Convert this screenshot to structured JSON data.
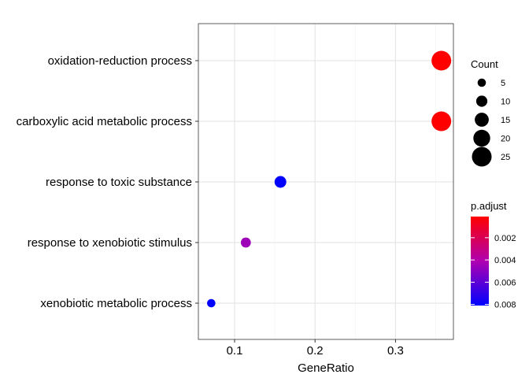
{
  "chart_data": {
    "type": "scatter",
    "title": "",
    "xlabel": "GeneRatio",
    "ylabel": "",
    "xlim": [
      0.055,
      0.372
    ],
    "x_ticks": [
      {
        "value": 0.1,
        "label": "0.1"
      },
      {
        "value": 0.2,
        "label": "0.2"
      },
      {
        "value": 0.3,
        "label": "0.3"
      }
    ],
    "grid": true,
    "categories": [
      "oxidation-reduction process",
      "carboxylic acid metabolic process",
      "response to toxic substance",
      "response to xenobiotic stimulus",
      "xenobiotic metabolic process"
    ],
    "points": [
      {
        "term": "oxidation-reduction process",
        "gene_ratio": 0.357,
        "count": 25,
        "p_adjust": 0.0001
      },
      {
        "term": "carboxylic acid metabolic process",
        "gene_ratio": 0.357,
        "count": 25,
        "p_adjust": 0.0001
      },
      {
        "term": "response to toxic substance",
        "gene_ratio": 0.157,
        "count": 11,
        "p_adjust": 0.0081
      },
      {
        "term": "response to xenobiotic stimulus",
        "gene_ratio": 0.114,
        "count": 8,
        "p_adjust": 0.0045
      },
      {
        "term": "xenobiotic metabolic process",
        "gene_ratio": 0.071,
        "count": 5,
        "p_adjust": 0.0081
      }
    ],
    "size_legend": {
      "title": "Count",
      "items": [
        {
          "value": 5,
          "label": "5"
        },
        {
          "value": 10,
          "label": "10"
        },
        {
          "value": 15,
          "label": "15"
        },
        {
          "value": 20,
          "label": "20"
        },
        {
          "value": 25,
          "label": "25"
        }
      ]
    },
    "color_legend": {
      "title": "p.adjust",
      "range": [
        0.0001,
        0.0081
      ],
      "low_color": "#FF0000",
      "high_color": "#0000FF",
      "ticks": [
        {
          "value": 0.002,
          "label": "0.002"
        },
        {
          "value": 0.004,
          "label": "0.004"
        },
        {
          "value": 0.006,
          "label": "0.006"
        },
        {
          "value": 0.008,
          "label": "0.008"
        }
      ]
    },
    "legend_position": "right"
  }
}
